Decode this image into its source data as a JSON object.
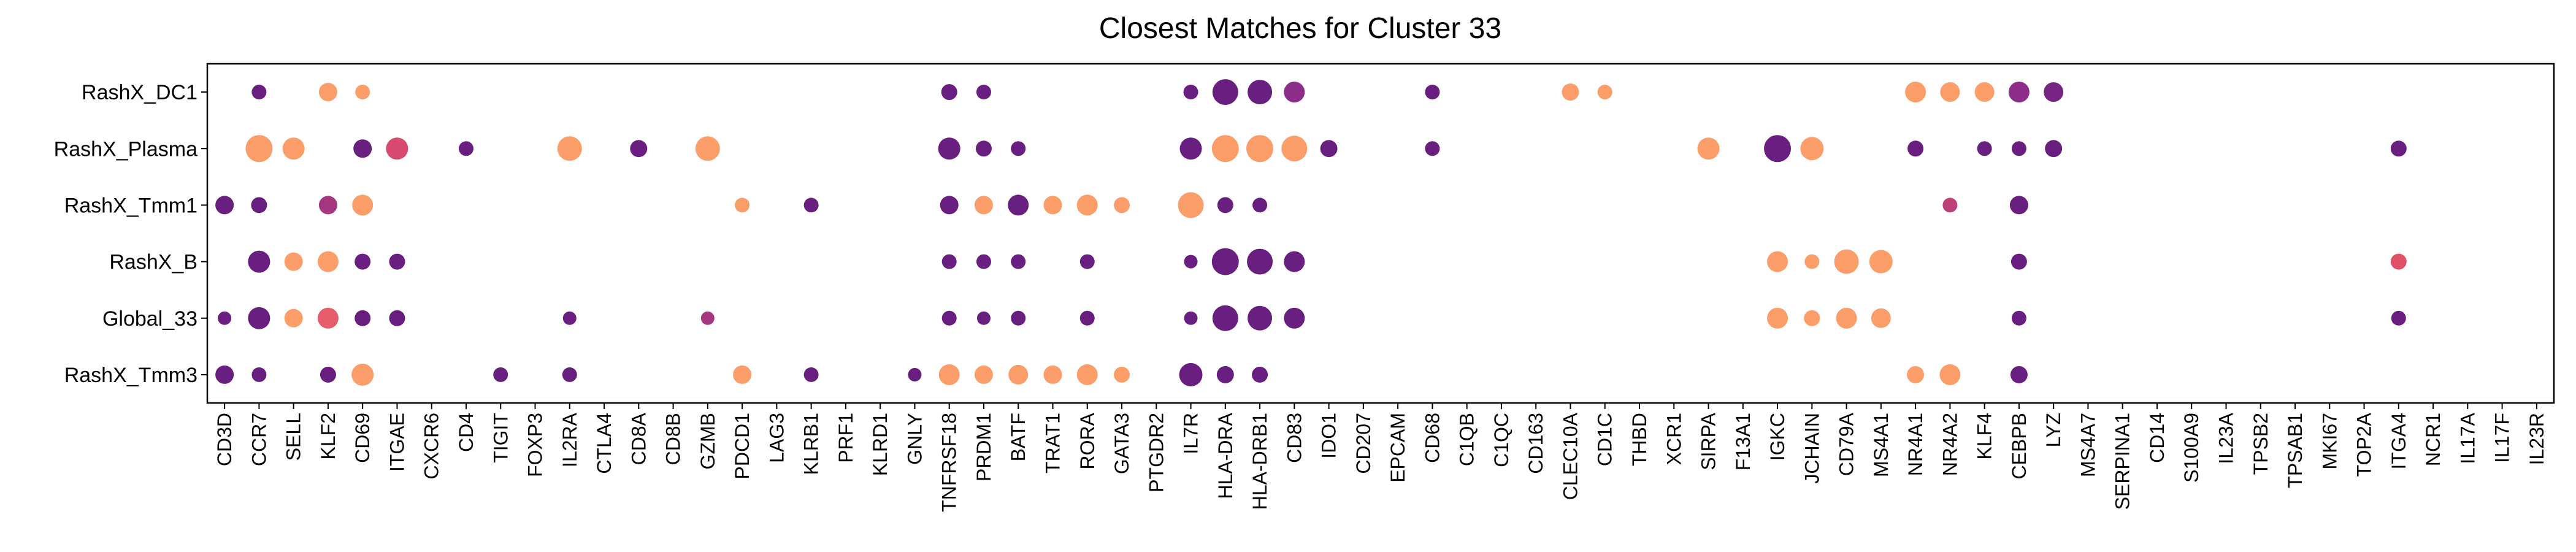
{
  "chart_data": {
    "type": "dotplot",
    "title": "Closest Matches for Cluster 33",
    "xlabel": "",
    "ylabel": "",
    "grid": false,
    "legend": "none",
    "genes": [
      "CD3D",
      "CCR7",
      "SELL",
      "KLF2",
      "CD69",
      "ITGAE",
      "CXCR6",
      "CD4",
      "TIGIT",
      "FOXP3",
      "IL2RA",
      "CTLA4",
      "CD8A",
      "CD8B",
      "GZMB",
      "PDCD1",
      "LAG3",
      "KLRB1",
      "PRF1",
      "KLRD1",
      "GNLY",
      "TNFRSF18",
      "PRDM1",
      "BATF",
      "TRAT1",
      "RORA",
      "GATA3",
      "PTGDR2",
      "IL7R",
      "HLA-DRA",
      "HLA-DRB1",
      "CD83",
      "IDO1",
      "CD207",
      "EPCAM",
      "CD68",
      "C1QB",
      "C1QC",
      "CD163",
      "CLEC10A",
      "CD1C",
      "THBD",
      "XCR1",
      "SIRPA",
      "F13A1",
      "IGKC",
      "JCHAIN",
      "CD79A",
      "MS4A1",
      "NR4A1",
      "NR4A2",
      "KLF4",
      "CEBPB",
      "LYZ",
      "MS4A7",
      "SERPINA1",
      "CD14",
      "S100A9",
      "IL23A",
      "TPSB2",
      "TPSAB1",
      "MKI67",
      "TOP2A",
      "ITGA4",
      "NCR1",
      "IL17A",
      "IL17F",
      "IL23R"
    ],
    "groups": [
      "RashX_DC1",
      "RashX_Plasma",
      "RashX_Tmm1",
      "RashX_B",
      "Global_33",
      "RashX_Tmm3"
    ],
    "color_scale": {
      "low": "#5b1a7a",
      "mid": "#8c2d8a",
      "high_mid": "#e2506a",
      "high": "#fb9e6a"
    },
    "dots": [
      {
        "group": "RashX_DC1",
        "gene": "CCR7",
        "size": 0.3,
        "color": 0.1
      },
      {
        "group": "RashX_DC1",
        "gene": "KLF2",
        "size": 0.45,
        "color": 1.0
      },
      {
        "group": "RashX_DC1",
        "gene": "CD69",
        "size": 0.3,
        "color": 1.0
      },
      {
        "group": "RashX_DC1",
        "gene": "TNFRSF18",
        "size": 0.35,
        "color": 0.1
      },
      {
        "group": "RashX_DC1",
        "gene": "PRDM1",
        "size": 0.3,
        "color": 0.1
      },
      {
        "group": "RashX_DC1",
        "gene": "IL7R",
        "size": 0.3,
        "color": 0.1
      },
      {
        "group": "RashX_DC1",
        "gene": "HLA-DRA",
        "size": 0.75,
        "color": 0.1
      },
      {
        "group": "RashX_DC1",
        "gene": "HLA-DRB1",
        "size": 0.7,
        "color": 0.1
      },
      {
        "group": "RashX_DC1",
        "gene": "CD83",
        "size": 0.55,
        "color": 0.35
      },
      {
        "group": "RashX_DC1",
        "gene": "CD68",
        "size": 0.3,
        "color": 0.1
      },
      {
        "group": "RashX_DC1",
        "gene": "CLEC10A",
        "size": 0.4,
        "color": 1.0
      },
      {
        "group": "RashX_DC1",
        "gene": "CD1C",
        "size": 0.3,
        "color": 1.0
      },
      {
        "group": "RashX_DC1",
        "gene": "NR4A1",
        "size": 0.55,
        "color": 1.0
      },
      {
        "group": "RashX_DC1",
        "gene": "NR4A2",
        "size": 0.5,
        "color": 1.0
      },
      {
        "group": "RashX_DC1",
        "gene": "KLF4",
        "size": 0.5,
        "color": 1.0
      },
      {
        "group": "RashX_DC1",
        "gene": "CEBPB",
        "size": 0.55,
        "color": 0.35
      },
      {
        "group": "RashX_DC1",
        "gene": "LYZ",
        "size": 0.5,
        "color": 0.2
      },
      {
        "group": "RashX_Plasma",
        "gene": "CCR7",
        "size": 0.8,
        "color": 1.0
      },
      {
        "group": "RashX_Plasma",
        "gene": "SELL",
        "size": 0.6,
        "color": 1.0
      },
      {
        "group": "RashX_Plasma",
        "gene": "CD69",
        "size": 0.45,
        "color": 0.1
      },
      {
        "group": "RashX_Plasma",
        "gene": "ITGAE",
        "size": 0.6,
        "color": 0.65
      },
      {
        "group": "RashX_Plasma",
        "gene": "CD4",
        "size": 0.3,
        "color": 0.1
      },
      {
        "group": "RashX_Plasma",
        "gene": "IL2RA",
        "size": 0.7,
        "color": 1.0
      },
      {
        "group": "RashX_Plasma",
        "gene": "CD8A",
        "size": 0.4,
        "color": 0.1
      },
      {
        "group": "RashX_Plasma",
        "gene": "GZMB",
        "size": 0.7,
        "color": 1.0
      },
      {
        "group": "RashX_Plasma",
        "gene": "TNFRSF18",
        "size": 0.6,
        "color": 0.1
      },
      {
        "group": "RashX_Plasma",
        "gene": "PRDM1",
        "size": 0.35,
        "color": 0.1
      },
      {
        "group": "RashX_Plasma",
        "gene": "BATF",
        "size": 0.3,
        "color": 0.1
      },
      {
        "group": "RashX_Plasma",
        "gene": "IL7R",
        "size": 0.6,
        "color": 0.1
      },
      {
        "group": "RashX_Plasma",
        "gene": "HLA-DRA",
        "size": 0.8,
        "color": 1.0
      },
      {
        "group": "RashX_Plasma",
        "gene": "HLA-DRB1",
        "size": 0.8,
        "color": 1.0
      },
      {
        "group": "RashX_Plasma",
        "gene": "CD83",
        "size": 0.75,
        "color": 1.0
      },
      {
        "group": "RashX_Plasma",
        "gene": "IDO1",
        "size": 0.4,
        "color": 0.1
      },
      {
        "group": "RashX_Plasma",
        "gene": "CD68",
        "size": 0.3,
        "color": 0.1
      },
      {
        "group": "RashX_Plasma",
        "gene": "SIRPA",
        "size": 0.6,
        "color": 1.0
      },
      {
        "group": "RashX_Plasma",
        "gene": "IGKC",
        "size": 0.8,
        "color": 0.1
      },
      {
        "group": "RashX_Plasma",
        "gene": "JCHAIN",
        "size": 0.65,
        "color": 1.0
      },
      {
        "group": "RashX_Plasma",
        "gene": "NR4A1",
        "size": 0.35,
        "color": 0.1
      },
      {
        "group": "RashX_Plasma",
        "gene": "KLF4",
        "size": 0.3,
        "color": 0.1
      },
      {
        "group": "RashX_Plasma",
        "gene": "CEBPB",
        "size": 0.3,
        "color": 0.1
      },
      {
        "group": "RashX_Plasma",
        "gene": "LYZ",
        "size": 0.4,
        "color": 0.1
      },
      {
        "group": "RashX_Plasma",
        "gene": "ITGA4",
        "size": 0.35,
        "color": 0.1
      },
      {
        "group": "RashX_Tmm1",
        "gene": "CD3D",
        "size": 0.45,
        "color": 0.1
      },
      {
        "group": "RashX_Tmm1",
        "gene": "CCR7",
        "size": 0.35,
        "color": 0.1
      },
      {
        "group": "RashX_Tmm1",
        "gene": "KLF2",
        "size": 0.45,
        "color": 0.45
      },
      {
        "group": "RashX_Tmm1",
        "gene": "CD69",
        "size": 0.55,
        "color": 1.0
      },
      {
        "group": "RashX_Tmm1",
        "gene": "PDCD1",
        "size": 0.3,
        "color": 1.0
      },
      {
        "group": "RashX_Tmm1",
        "gene": "KLRB1",
        "size": 0.3,
        "color": 0.1
      },
      {
        "group": "RashX_Tmm1",
        "gene": "TNFRSF18",
        "size": 0.45,
        "color": 0.1
      },
      {
        "group": "RashX_Tmm1",
        "gene": "PRDM1",
        "size": 0.45,
        "color": 1.0
      },
      {
        "group": "RashX_Tmm1",
        "gene": "BATF",
        "size": 0.55,
        "color": 0.1
      },
      {
        "group": "RashX_Tmm1",
        "gene": "TRAT1",
        "size": 0.45,
        "color": 1.0
      },
      {
        "group": "RashX_Tmm1",
        "gene": "RORA",
        "size": 0.55,
        "color": 1.0
      },
      {
        "group": "RashX_Tmm1",
        "gene": "GATA3",
        "size": 0.35,
        "color": 1.0
      },
      {
        "group": "RashX_Tmm1",
        "gene": "IL7R",
        "size": 0.75,
        "color": 1.0
      },
      {
        "group": "RashX_Tmm1",
        "gene": "HLA-DRA",
        "size": 0.35,
        "color": 0.1
      },
      {
        "group": "RashX_Tmm1",
        "gene": "HLA-DRB1",
        "size": 0.3,
        "color": 0.1
      },
      {
        "group": "RashX_Tmm1",
        "gene": "NR4A2",
        "size": 0.3,
        "color": 0.55
      },
      {
        "group": "RashX_Tmm1",
        "gene": "CEBPB",
        "size": 0.45,
        "color": 0.1
      },
      {
        "group": "RashX_B",
        "gene": "CCR7",
        "size": 0.6,
        "color": 0.1
      },
      {
        "group": "RashX_B",
        "gene": "SELL",
        "size": 0.45,
        "color": 1.0
      },
      {
        "group": "RashX_B",
        "gene": "KLF2",
        "size": 0.55,
        "color": 1.0
      },
      {
        "group": "RashX_B",
        "gene": "CD69",
        "size": 0.35,
        "color": 0.1
      },
      {
        "group": "RashX_B",
        "gene": "ITGAE",
        "size": 0.35,
        "color": 0.1
      },
      {
        "group": "RashX_B",
        "gene": "TNFRSF18",
        "size": 0.3,
        "color": 0.1
      },
      {
        "group": "RashX_B",
        "gene": "PRDM1",
        "size": 0.3,
        "color": 0.1
      },
      {
        "group": "RashX_B",
        "gene": "BATF",
        "size": 0.3,
        "color": 0.1
      },
      {
        "group": "RashX_B",
        "gene": "RORA",
        "size": 0.3,
        "color": 0.1
      },
      {
        "group": "RashX_B",
        "gene": "IL7R",
        "size": 0.25,
        "color": 0.1
      },
      {
        "group": "RashX_B",
        "gene": "HLA-DRA",
        "size": 0.8,
        "color": 0.1
      },
      {
        "group": "RashX_B",
        "gene": "HLA-DRB1",
        "size": 0.75,
        "color": 0.1
      },
      {
        "group": "RashX_B",
        "gene": "CD83",
        "size": 0.55,
        "color": 0.1
      },
      {
        "group": "RashX_B",
        "gene": "IGKC",
        "size": 0.55,
        "color": 1.0
      },
      {
        "group": "RashX_B",
        "gene": "JCHAIN",
        "size": 0.3,
        "color": 1.0
      },
      {
        "group": "RashX_B",
        "gene": "CD79A",
        "size": 0.7,
        "color": 1.0
      },
      {
        "group": "RashX_B",
        "gene": "MS4A1",
        "size": 0.65,
        "color": 1.0
      },
      {
        "group": "RashX_B",
        "gene": "CEBPB",
        "size": 0.35,
        "color": 0.1
      },
      {
        "group": "RashX_B",
        "gene": "ITGA4",
        "size": 0.35,
        "color": 0.7
      },
      {
        "group": "Global_33",
        "gene": "CD3D",
        "size": 0.25,
        "color": 0.1
      },
      {
        "group": "Global_33",
        "gene": "CCR7",
        "size": 0.6,
        "color": 0.1
      },
      {
        "group": "Global_33",
        "gene": "SELL",
        "size": 0.45,
        "color": 1.0
      },
      {
        "group": "Global_33",
        "gene": "KLF2",
        "size": 0.55,
        "color": 0.75
      },
      {
        "group": "Global_33",
        "gene": "CD69",
        "size": 0.35,
        "color": 0.1
      },
      {
        "group": "Global_33",
        "gene": "ITGAE",
        "size": 0.35,
        "color": 0.1
      },
      {
        "group": "Global_33",
        "gene": "IL2RA",
        "size": 0.25,
        "color": 0.1
      },
      {
        "group": "Global_33",
        "gene": "GZMB",
        "size": 0.25,
        "color": 0.45
      },
      {
        "group": "Global_33",
        "gene": "TNFRSF18",
        "size": 0.3,
        "color": 0.1
      },
      {
        "group": "Global_33",
        "gene": "PRDM1",
        "size": 0.25,
        "color": 0.1
      },
      {
        "group": "Global_33",
        "gene": "BATF",
        "size": 0.3,
        "color": 0.1
      },
      {
        "group": "Global_33",
        "gene": "RORA",
        "size": 0.3,
        "color": 0.1
      },
      {
        "group": "Global_33",
        "gene": "IL7R",
        "size": 0.25,
        "color": 0.1
      },
      {
        "group": "Global_33",
        "gene": "HLA-DRA",
        "size": 0.75,
        "color": 0.1
      },
      {
        "group": "Global_33",
        "gene": "HLA-DRB1",
        "size": 0.7,
        "color": 0.1
      },
      {
        "group": "Global_33",
        "gene": "CD83",
        "size": 0.55,
        "color": 0.1
      },
      {
        "group": "Global_33",
        "gene": "IGKC",
        "size": 0.55,
        "color": 1.0
      },
      {
        "group": "Global_33",
        "gene": "JCHAIN",
        "size": 0.35,
        "color": 1.0
      },
      {
        "group": "Global_33",
        "gene": "CD79A",
        "size": 0.55,
        "color": 1.0
      },
      {
        "group": "Global_33",
        "gene": "MS4A1",
        "size": 0.5,
        "color": 1.0
      },
      {
        "group": "Global_33",
        "gene": "CEBPB",
        "size": 0.3,
        "color": 0.1
      },
      {
        "group": "Global_33",
        "gene": "ITGA4",
        "size": 0.3,
        "color": 0.1
      },
      {
        "group": "RashX_Tmm3",
        "gene": "CD3D",
        "size": 0.45,
        "color": 0.1
      },
      {
        "group": "RashX_Tmm3",
        "gene": "CCR7",
        "size": 0.3,
        "color": 0.1
      },
      {
        "group": "RashX_Tmm3",
        "gene": "KLF2",
        "size": 0.35,
        "color": 0.1
      },
      {
        "group": "RashX_Tmm3",
        "gene": "CD69",
        "size": 0.6,
        "color": 1.0
      },
      {
        "group": "RashX_Tmm3",
        "gene": "TIGIT",
        "size": 0.3,
        "color": 0.1
      },
      {
        "group": "RashX_Tmm3",
        "gene": "IL2RA",
        "size": 0.3,
        "color": 0.1
      },
      {
        "group": "RashX_Tmm3",
        "gene": "PDCD1",
        "size": 0.45,
        "color": 1.0
      },
      {
        "group": "RashX_Tmm3",
        "gene": "KLRB1",
        "size": 0.3,
        "color": 0.1
      },
      {
        "group": "RashX_Tmm3",
        "gene": "GNLY",
        "size": 0.25,
        "color": 0.1
      },
      {
        "group": "RashX_Tmm3",
        "gene": "TNFRSF18",
        "size": 0.55,
        "color": 1.0
      },
      {
        "group": "RashX_Tmm3",
        "gene": "PRDM1",
        "size": 0.45,
        "color": 1.0
      },
      {
        "group": "RashX_Tmm3",
        "gene": "BATF",
        "size": 0.5,
        "color": 1.0
      },
      {
        "group": "RashX_Tmm3",
        "gene": "TRAT1",
        "size": 0.45,
        "color": 1.0
      },
      {
        "group": "RashX_Tmm3",
        "gene": "RORA",
        "size": 0.55,
        "color": 1.0
      },
      {
        "group": "RashX_Tmm3",
        "gene": "GATA3",
        "size": 0.35,
        "color": 1.0
      },
      {
        "group": "RashX_Tmm3",
        "gene": "IL7R",
        "size": 0.65,
        "color": 0.1
      },
      {
        "group": "RashX_Tmm3",
        "gene": "HLA-DRA",
        "size": 0.4,
        "color": 0.1
      },
      {
        "group": "RashX_Tmm3",
        "gene": "HLA-DRB1",
        "size": 0.35,
        "color": 0.1
      },
      {
        "group": "RashX_Tmm3",
        "gene": "NR4A1",
        "size": 0.4,
        "color": 1.0
      },
      {
        "group": "RashX_Tmm3",
        "gene": "NR4A2",
        "size": 0.55,
        "color": 1.0
      },
      {
        "group": "RashX_Tmm3",
        "gene": "CEBPB",
        "size": 0.4,
        "color": 0.1
      }
    ]
  }
}
